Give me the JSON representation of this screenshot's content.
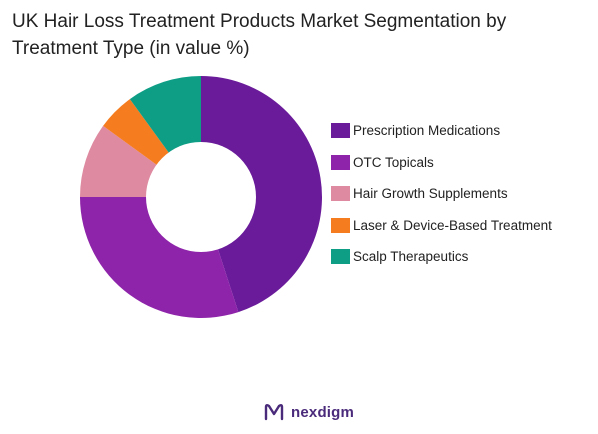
{
  "title": "UK Hair Loss Treatment Products Market Segmentation by Treatment Type (in value %)",
  "chart_data": {
    "type": "donut",
    "title": "UK Hair Loss Treatment Products Market Segmentation by Treatment Type (in value %)",
    "unit": "%",
    "legend_position": "right",
    "series": [
      {
        "name": "Prescription Medications",
        "value": 45,
        "color": "#6a1b9a"
      },
      {
        "name": "OTC Topicals",
        "value": 30,
        "color": "#8e24aa"
      },
      {
        "name": "Hair Growth Supplements",
        "value": 10,
        "color": "#de8aa0"
      },
      {
        "name": "Laser & Device-Based Treatment",
        "value": 5,
        "color": "#f57c1f"
      },
      {
        "name": "Scalp Therapeutics",
        "value": 10,
        "color": "#0e9e86"
      }
    ]
  },
  "brand": {
    "name": "nexdigm",
    "color": "#4a2a7a"
  }
}
